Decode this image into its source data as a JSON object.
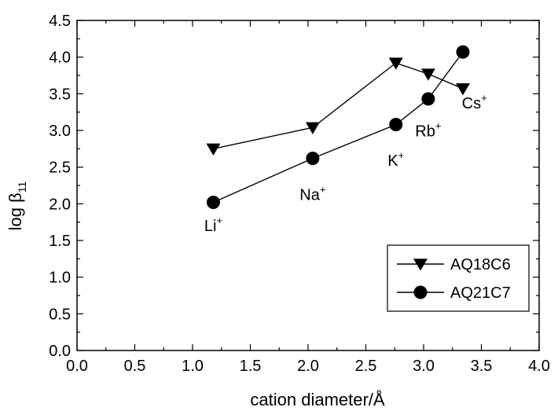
{
  "chart_data": {
    "type": "line",
    "xlabel": "cation diameter/Å",
    "ylabel": {
      "base": "log β",
      "sub": "11"
    },
    "xlim": [
      0.0,
      4.0
    ],
    "ylim": [
      0.0,
      4.5
    ],
    "x_ticks": [
      0.0,
      0.5,
      1.0,
      1.5,
      2.0,
      2.5,
      3.0,
      3.5,
      4.0
    ],
    "y_ticks": [
      0.0,
      0.5,
      1.0,
      1.5,
      2.0,
      2.5,
      3.0,
      3.5,
      4.0,
      4.5
    ],
    "grid": false,
    "legend_position": "bottom-right",
    "series": [
      {
        "name": "AQ18C6",
        "marker": "triangle-down",
        "x": [
          1.18,
          2.04,
          2.76,
          3.04,
          3.34
        ],
        "y": [
          2.75,
          3.04,
          3.92,
          3.77,
          3.57
        ]
      },
      {
        "name": "AQ21C7",
        "marker": "circle",
        "x": [
          1.18,
          2.04,
          2.76,
          3.04,
          3.34
        ],
        "y": [
          2.02,
          2.62,
          3.08,
          3.43,
          4.07
        ]
      }
    ],
    "annotations": [
      {
        "base": "Li",
        "sup": "+",
        "x": 1.18,
        "y": 1.63
      },
      {
        "base": "Na",
        "sup": "+",
        "x": 2.04,
        "y": 2.05
      },
      {
        "base": "K",
        "sup": "+",
        "x": 2.76,
        "y": 2.52
      },
      {
        "base": "Rb",
        "sup": "+",
        "x": 3.04,
        "y": 2.92
      },
      {
        "base": "Cs",
        "sup": "+",
        "x": 3.44,
        "y": 3.3
      }
    ]
  }
}
